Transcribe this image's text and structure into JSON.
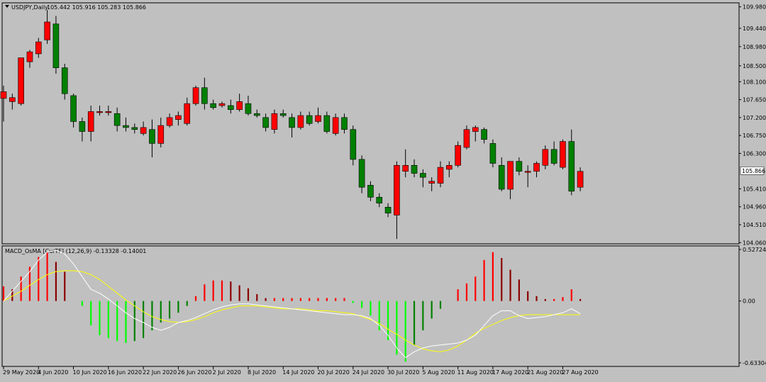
{
  "chart_data": [
    {
      "type": "candlestick",
      "symbol_label": "USDJPY,Daily",
      "ohlc_label": "105.442 105.916 105.283 105.866",
      "current_price": 105.866,
      "current_price_label": "105.866",
      "ylim": [
        104.03,
        110.08
      ],
      "y_ticks": [
        "109.980",
        "109.440",
        "108.980",
        "108.500",
        "108.100",
        "107.650",
        "107.200",
        "106.750",
        "106.300",
        "105.866",
        "105.410",
        "104.960",
        "104.510",
        "104.060"
      ],
      "x_ticks": [
        "29 May 2020",
        "4 Jun 2020",
        "10 Jun 2020",
        "16 Jun 2020",
        "22 Jun 2020",
        "26 Jun 2020",
        "2 Jul 2020",
        "8 Jul 2020",
        "14 Jul 2020",
        "20 Jul 2020",
        "24 Jul 2020",
        "30 Jul 2020",
        "5 Aug 2020",
        "11 Aug 2020",
        "17 Aug 2020",
        "21 Aug 2020",
        "27 Aug 2020"
      ],
      "bull_color": "#ff0000",
      "bear_color": "#008000",
      "candles": [
        {
          "o": 107.68,
          "h": 108.0,
          "l": 107.1,
          "c": 107.85
        },
        {
          "o": 107.6,
          "h": 107.8,
          "l": 107.4,
          "c": 107.7
        },
        {
          "o": 107.55,
          "h": 108.7,
          "l": 107.5,
          "c": 108.7
        },
        {
          "o": 108.6,
          "h": 108.9,
          "l": 108.45,
          "c": 108.85
        },
        {
          "o": 108.8,
          "h": 109.2,
          "l": 108.7,
          "c": 109.1
        },
        {
          "o": 109.15,
          "h": 109.9,
          "l": 109.05,
          "c": 109.6
        },
        {
          "o": 109.55,
          "h": 109.75,
          "l": 108.3,
          "c": 108.45
        },
        {
          "o": 108.45,
          "h": 108.55,
          "l": 107.65,
          "c": 107.8
        },
        {
          "o": 107.75,
          "h": 107.8,
          "l": 106.95,
          "c": 107.1
        },
        {
          "o": 107.1,
          "h": 107.2,
          "l": 106.6,
          "c": 106.85
        },
        {
          "o": 106.85,
          "h": 107.5,
          "l": 106.6,
          "c": 107.35
        },
        {
          "o": 107.35,
          "h": 107.5,
          "l": 107.25,
          "c": 107.35
        },
        {
          "o": 107.35,
          "h": 107.5,
          "l": 107.25,
          "c": 107.35
        },
        {
          "o": 107.3,
          "h": 107.45,
          "l": 106.85,
          "c": 107.0
        },
        {
          "o": 107.0,
          "h": 107.2,
          "l": 106.85,
          "c": 106.95
        },
        {
          "o": 106.95,
          "h": 107.05,
          "l": 106.8,
          "c": 106.9
        },
        {
          "o": 106.8,
          "h": 107.1,
          "l": 106.75,
          "c": 106.95
        },
        {
          "o": 106.9,
          "h": 107.15,
          "l": 106.2,
          "c": 106.55
        },
        {
          "o": 106.55,
          "h": 107.2,
          "l": 106.45,
          "c": 107.0
        },
        {
          "o": 107.0,
          "h": 107.3,
          "l": 106.95,
          "c": 107.2
        },
        {
          "o": 107.15,
          "h": 107.35,
          "l": 107.0,
          "c": 107.25
        },
        {
          "o": 107.05,
          "h": 107.7,
          "l": 107.0,
          "c": 107.55
        },
        {
          "o": 107.55,
          "h": 108.0,
          "l": 107.5,
          "c": 107.95
        },
        {
          "o": 107.95,
          "h": 108.2,
          "l": 107.4,
          "c": 107.55
        },
        {
          "o": 107.55,
          "h": 107.65,
          "l": 107.4,
          "c": 107.45
        },
        {
          "o": 107.5,
          "h": 107.6,
          "l": 107.45,
          "c": 107.55
        },
        {
          "o": 107.5,
          "h": 107.65,
          "l": 107.3,
          "c": 107.4
        },
        {
          "o": 107.4,
          "h": 107.8,
          "l": 107.35,
          "c": 107.6
        },
        {
          "o": 107.55,
          "h": 107.75,
          "l": 107.25,
          "c": 107.3
        },
        {
          "o": 107.3,
          "h": 107.4,
          "l": 107.2,
          "c": 107.25
        },
        {
          "o": 107.2,
          "h": 107.3,
          "l": 106.85,
          "c": 106.95
        },
        {
          "o": 106.9,
          "h": 107.4,
          "l": 106.8,
          "c": 107.3
        },
        {
          "o": 107.3,
          "h": 107.4,
          "l": 107.2,
          "c": 107.25
        },
        {
          "o": 107.2,
          "h": 107.3,
          "l": 106.7,
          "c": 106.95
        },
        {
          "o": 106.95,
          "h": 107.35,
          "l": 106.9,
          "c": 107.25
        },
        {
          "o": 107.25,
          "h": 107.35,
          "l": 107.0,
          "c": 107.05
        },
        {
          "o": 107.1,
          "h": 107.45,
          "l": 107.05,
          "c": 107.25
        },
        {
          "o": 107.25,
          "h": 107.35,
          "l": 106.8,
          "c": 106.85
        },
        {
          "o": 106.8,
          "h": 107.3,
          "l": 106.75,
          "c": 107.2
        },
        {
          "o": 107.2,
          "h": 107.3,
          "l": 106.8,
          "c": 106.9
        },
        {
          "o": 106.9,
          "h": 107.0,
          "l": 106.0,
          "c": 106.15
        },
        {
          "o": 106.15,
          "h": 106.25,
          "l": 105.3,
          "c": 105.45
        },
        {
          "o": 105.5,
          "h": 105.6,
          "l": 105.1,
          "c": 105.2
        },
        {
          "o": 105.2,
          "h": 105.3,
          "l": 104.95,
          "c": 105.05
        },
        {
          "o": 104.95,
          "h": 105.05,
          "l": 104.7,
          "c": 104.8
        },
        {
          "o": 104.75,
          "h": 106.1,
          "l": 104.15,
          "c": 106.0
        },
        {
          "o": 105.85,
          "h": 106.4,
          "l": 105.7,
          "c": 106.0
        },
        {
          "o": 106.0,
          "h": 106.15,
          "l": 105.7,
          "c": 105.8
        },
        {
          "o": 105.8,
          "h": 105.9,
          "l": 105.45,
          "c": 105.7
        },
        {
          "o": 105.55,
          "h": 105.7,
          "l": 105.35,
          "c": 105.6
        },
        {
          "o": 105.55,
          "h": 106.1,
          "l": 105.45,
          "c": 105.95
        },
        {
          "o": 105.9,
          "h": 106.1,
          "l": 105.7,
          "c": 106.0
        },
        {
          "o": 106.0,
          "h": 106.6,
          "l": 105.95,
          "c": 106.5
        },
        {
          "o": 106.45,
          "h": 107.0,
          "l": 106.4,
          "c": 106.9
        },
        {
          "o": 106.85,
          "h": 107.0,
          "l": 106.6,
          "c": 106.95
        },
        {
          "o": 106.9,
          "h": 106.95,
          "l": 106.55,
          "c": 106.65
        },
        {
          "o": 106.55,
          "h": 106.65,
          "l": 105.95,
          "c": 106.05
        },
        {
          "o": 106.0,
          "h": 106.2,
          "l": 105.35,
          "c": 105.4
        },
        {
          "o": 105.4,
          "h": 106.1,
          "l": 105.15,
          "c": 106.1
        },
        {
          "o": 106.1,
          "h": 106.2,
          "l": 105.75,
          "c": 105.85
        },
        {
          "o": 105.85,
          "h": 106.0,
          "l": 105.45,
          "c": 105.85
        },
        {
          "o": 105.85,
          "h": 106.1,
          "l": 105.7,
          "c": 106.05
        },
        {
          "o": 106.0,
          "h": 106.5,
          "l": 105.9,
          "c": 106.4
        },
        {
          "o": 106.4,
          "h": 106.6,
          "l": 106.0,
          "c": 106.05
        },
        {
          "o": 105.95,
          "h": 106.65,
          "l": 105.9,
          "c": 106.6
        },
        {
          "o": 106.6,
          "h": 106.9,
          "l": 105.25,
          "c": 105.35
        },
        {
          "o": 105.45,
          "h": 105.95,
          "l": 105.35,
          "c": 105.85
        }
      ]
    },
    {
      "type": "bar+line",
      "indicator_label": "MACD_OsMA [CurTF] (12,26,9) -0.13328 -0.14001",
      "ylim": [
        -0.63304,
        0.52724
      ],
      "y_ticks": [
        "0.52724",
        "0.00",
        "-0.63304"
      ],
      "up_color": "#ff0000",
      "up_fade_color": "#8b0000",
      "down_color": "#00ff00",
      "down_fade_color": "#008000",
      "macd_line_color": "#ffffff",
      "signal_line_color": "#ffff00",
      "histogram": [
        0.15,
        0.12,
        0.25,
        0.35,
        0.45,
        0.5,
        0.4,
        0.3,
        0.0,
        -0.05,
        -0.25,
        -0.35,
        -0.38,
        -0.41,
        -0.43,
        -0.41,
        -0.38,
        -0.3,
        -0.22,
        -0.18,
        -0.12,
        -0.05,
        0.05,
        0.17,
        0.21,
        0.21,
        0.2,
        0.16,
        0.13,
        0.07,
        0.03,
        0.03,
        0.03,
        0.03,
        0.03,
        0.03,
        0.03,
        0.03,
        0.03,
        0.03,
        -0.02,
        -0.07,
        -0.15,
        -0.3,
        -0.4,
        -0.55,
        -0.62,
        -0.45,
        -0.3,
        -0.18,
        -0.08,
        0.0,
        0.12,
        0.18,
        0.25,
        0.42,
        0.5,
        0.44,
        0.32,
        0.22,
        0.1,
        0.05,
        0.02,
        0.02,
        0.04,
        0.12,
        0.02
      ],
      "macd": [
        0.0,
        0.1,
        0.2,
        0.3,
        0.42,
        0.5,
        0.52,
        0.48,
        0.38,
        0.25,
        0.12,
        0.08,
        0.02,
        -0.05,
        -0.12,
        -0.18,
        -0.22,
        -0.27,
        -0.3,
        -0.27,
        -0.22,
        -0.2,
        -0.17,
        -0.13,
        -0.09,
        -0.06,
        -0.04,
        -0.03,
        -0.03,
        -0.04,
        -0.05,
        -0.06,
        -0.07,
        -0.08,
        -0.09,
        -0.1,
        -0.11,
        -0.12,
        -0.13,
        -0.14,
        -0.14,
        -0.15,
        -0.18,
        -0.25,
        -0.35,
        -0.48,
        -0.58,
        -0.52,
        -0.48,
        -0.46,
        -0.45,
        -0.44,
        -0.43,
        -0.4,
        -0.35,
        -0.25,
        -0.15,
        -0.1,
        -0.1,
        -0.15,
        -0.18,
        -0.17,
        -0.16,
        -0.14,
        -0.12,
        -0.08,
        -0.13
      ],
      "signal": [
        0.0,
        0.05,
        0.1,
        0.16,
        0.22,
        0.27,
        0.3,
        0.31,
        0.31,
        0.3,
        0.27,
        0.22,
        0.15,
        0.08,
        0.01,
        -0.05,
        -0.11,
        -0.16,
        -0.19,
        -0.21,
        -0.22,
        -0.21,
        -0.19,
        -0.16,
        -0.12,
        -0.09,
        -0.07,
        -0.05,
        -0.05,
        -0.05,
        -0.06,
        -0.07,
        -0.08,
        -0.08,
        -0.08,
        -0.09,
        -0.1,
        -0.1,
        -0.11,
        -0.12,
        -0.13,
        -0.16,
        -0.19,
        -0.23,
        -0.29,
        -0.34,
        -0.4,
        -0.45,
        -0.49,
        -0.51,
        -0.52,
        -0.5,
        -0.46,
        -0.4,
        -0.33,
        -0.28,
        -0.24,
        -0.2,
        -0.17,
        -0.15,
        -0.14,
        -0.14,
        -0.14,
        -0.14,
        -0.14,
        -0.14,
        -0.14
      ]
    }
  ]
}
